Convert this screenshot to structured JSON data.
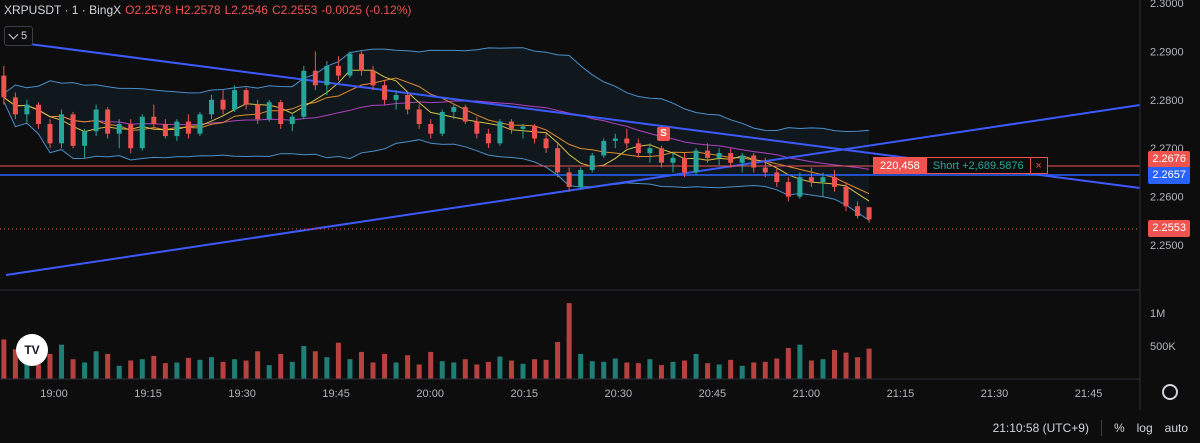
{
  "legend": {
    "symbol": "XRPUSDT · 1 · BingX",
    "open": "O2.2578",
    "high": "H2.2578",
    "low": "L2.2546",
    "close": "C2.2553",
    "change": "-0.0025 (-0.12%)"
  },
  "indicators_toggle": {
    "count": "5"
  },
  "price_axis": {
    "ticks": [
      "2.3000",
      "2.2900",
      "2.2800",
      "2.2700",
      "2.2600",
      "2.2500"
    ],
    "volume_ticks": [
      "1M",
      "500K"
    ],
    "tags": [
      {
        "label": "2.2676",
        "color": "#ef5350"
      },
      {
        "label": "2.2657",
        "color": "#2962ff"
      },
      {
        "label": "2.2553",
        "color": "#ef5350"
      }
    ]
  },
  "time_axis": {
    "ticks": [
      "19:00",
      "19:15",
      "19:30",
      "19:45",
      "20:00",
      "20:15",
      "20:30",
      "20:45",
      "21:00",
      "21:15",
      "21:30",
      "21:45"
    ]
  },
  "position": {
    "quantity": "220,458",
    "pnl": "Short +2,689.5876",
    "close_symbol": "×"
  },
  "signal_marker": "S",
  "logo": {
    "text": "TV"
  },
  "footer": {
    "clock": "21:10:58 (UTC+9)",
    "percent": "%",
    "log": "log",
    "auto": "auto"
  },
  "colors": {
    "up": "#26a69a",
    "down": "#ef5350",
    "trendline": "#3d5afe",
    "band": "#4a8fc9"
  },
  "chart_data": {
    "type": "candlestick",
    "title": "XRPUSDT · 1 · BingX",
    "x_range": [
      "18:52",
      "21:52"
    ],
    "y_range": [
      2.243,
      2.3
    ],
    "grid": false,
    "candles": [
      [
        2.285,
        2.287,
        2.279,
        2.2805
      ],
      [
        2.2805,
        2.2815,
        2.276,
        2.277
      ],
      [
        2.277,
        2.28,
        2.275,
        2.279
      ],
      [
        2.279,
        2.2795,
        2.274,
        2.275
      ],
      [
        2.275,
        2.276,
        2.27,
        2.271
      ],
      [
        2.271,
        2.278,
        2.27,
        2.277
      ],
      [
        2.277,
        2.2775,
        2.27,
        2.2705
      ],
      [
        2.2705,
        2.274,
        2.268,
        2.2735
      ],
      [
        2.2735,
        2.279,
        2.2725,
        2.278
      ],
      [
        2.278,
        2.2785,
        2.272,
        2.273
      ],
      [
        2.273,
        2.276,
        2.27,
        2.275
      ],
      [
        2.275,
        2.276,
        2.269,
        2.27
      ],
      [
        2.27,
        2.277,
        2.2695,
        2.2765
      ],
      [
        2.2765,
        2.279,
        2.274,
        2.275
      ],
      [
        2.275,
        2.276,
        2.272,
        2.2725
      ],
      [
        2.2725,
        2.276,
        2.2715,
        2.2755
      ],
      [
        2.2755,
        2.277,
        2.272,
        2.273
      ],
      [
        2.273,
        2.2775,
        2.2725,
        2.277
      ],
      [
        2.277,
        2.281,
        2.276,
        2.28
      ],
      [
        2.28,
        2.282,
        2.277,
        2.278
      ],
      [
        2.278,
        2.283,
        2.2775,
        2.282
      ],
      [
        2.282,
        2.2825,
        2.278,
        2.279
      ],
      [
        2.279,
        2.28,
        2.275,
        2.276
      ],
      [
        2.276,
        2.28,
        2.2755,
        2.2795
      ],
      [
        2.2795,
        2.28,
        2.274,
        2.275
      ],
      [
        2.275,
        2.277,
        2.2735,
        2.2765
      ],
      [
        2.2765,
        2.287,
        2.276,
        2.286
      ],
      [
        2.286,
        2.29,
        2.282,
        2.283
      ],
      [
        2.283,
        2.288,
        2.281,
        2.287
      ],
      [
        2.287,
        2.289,
        2.284,
        2.285
      ],
      [
        2.285,
        2.29,
        2.2845,
        2.2895
      ],
      [
        2.2895,
        2.29,
        2.285,
        2.286
      ],
      [
        2.286,
        2.287,
        2.282,
        2.283
      ],
      [
        2.283,
        2.284,
        2.279,
        2.28
      ],
      [
        2.28,
        2.282,
        2.278,
        2.281
      ],
      [
        2.281,
        2.2815,
        2.277,
        2.278
      ],
      [
        2.278,
        2.279,
        2.274,
        2.275
      ],
      [
        2.275,
        2.276,
        2.272,
        2.273
      ],
      [
        2.273,
        2.278,
        2.2725,
        2.2775
      ],
      [
        2.2775,
        2.279,
        2.276,
        2.2785
      ],
      [
        2.2785,
        2.279,
        2.275,
        2.2755
      ],
      [
        2.2755,
        2.2765,
        2.272,
        2.273
      ],
      [
        2.273,
        2.274,
        2.27,
        2.271
      ],
      [
        2.271,
        2.276,
        2.2705,
        2.2755
      ],
      [
        2.2755,
        2.276,
        2.273,
        2.274
      ],
      [
        2.274,
        2.275,
        2.272,
        2.2745
      ],
      [
        2.2745,
        2.275,
        2.271,
        2.272
      ],
      [
        2.272,
        2.273,
        2.269,
        2.27
      ],
      [
        2.27,
        2.271,
        2.264,
        2.265
      ],
      [
        2.265,
        2.266,
        2.261,
        2.262
      ],
      [
        2.262,
        2.266,
        2.2615,
        2.2655
      ],
      [
        2.2655,
        2.269,
        2.265,
        2.2685
      ],
      [
        2.2685,
        2.272,
        2.268,
        2.2715
      ],
      [
        2.2715,
        2.273,
        2.27,
        2.272
      ],
      [
        2.272,
        2.274,
        2.27,
        2.271
      ],
      [
        2.271,
        2.272,
        2.268,
        2.269
      ],
      [
        2.269,
        2.271,
        2.267,
        2.27
      ],
      [
        2.27,
        2.2705,
        2.266,
        2.267
      ],
      [
        2.267,
        2.269,
        2.265,
        2.268
      ],
      [
        2.268,
        2.269,
        2.264,
        2.265
      ],
      [
        2.265,
        2.27,
        2.2645,
        2.2695
      ],
      [
        2.2695,
        2.271,
        2.267,
        2.268
      ],
      [
        2.268,
        2.27,
        2.2665,
        2.269
      ],
      [
        2.269,
        2.27,
        2.266,
        2.267
      ],
      [
        2.267,
        2.269,
        2.265,
        2.2685
      ],
      [
        2.2685,
        2.269,
        2.265,
        2.266
      ],
      [
        2.266,
        2.268,
        2.264,
        2.265
      ],
      [
        2.265,
        2.266,
        2.262,
        2.263
      ],
      [
        2.263,
        2.264,
        2.259,
        2.26
      ],
      [
        2.26,
        2.265,
        2.2595,
        2.264
      ],
      [
        2.264,
        2.266,
        2.262,
        2.263
      ],
      [
        2.263,
        2.265,
        2.26,
        2.264
      ],
      [
        2.264,
        2.2655,
        2.261,
        2.262
      ],
      [
        2.262,
        2.263,
        2.257,
        2.258
      ],
      [
        2.258,
        2.259,
        2.2555,
        2.256
      ],
      [
        2.2578,
        2.2578,
        2.2546,
        2.2553
      ]
    ],
    "volume_range": [
      0,
      1400000
    ],
    "volumes": [
      600000,
      450000,
      300000,
      220000,
      380000,
      520000,
      300000,
      250000,
      420000,
      380000,
      200000,
      280000,
      300000,
      350000,
      240000,
      250000,
      320000,
      290000,
      330000,
      260000,
      300000,
      280000,
      420000,
      210000,
      380000,
      260000,
      500000,
      420000,
      330000,
      550000,
      300000,
      410000,
      250000,
      380000,
      250000,
      360000,
      220000,
      410000,
      270000,
      250000,
      300000,
      220000,
      260000,
      340000,
      280000,
      230000,
      300000,
      290000,
      560000,
      1150000,
      380000,
      270000,
      260000,
      310000,
      250000,
      240000,
      300000,
      210000,
      260000,
      280000,
      380000,
      240000,
      220000,
      290000,
      200000,
      250000,
      260000,
      310000,
      470000,
      520000,
      280000,
      300000,
      440000,
      400000,
      330000,
      460000
    ]
  }
}
